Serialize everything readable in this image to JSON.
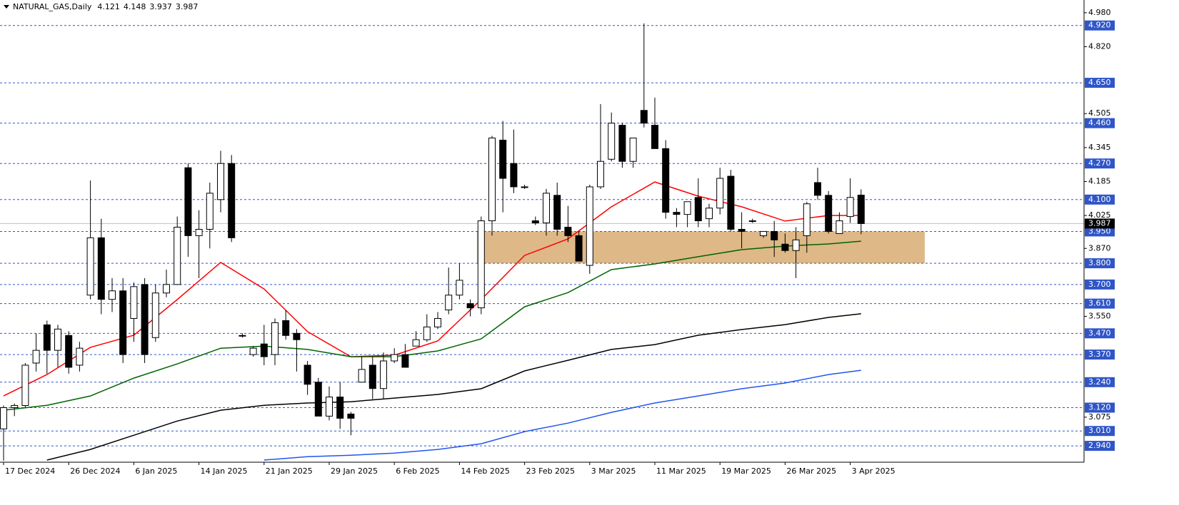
{
  "chart_data": {
    "type": "candlestick",
    "title": "NATURAL_GAS,Daily",
    "categories": [
      "17 Dec 2024",
      null,
      null,
      null,
      null,
      null,
      "26 Dec 2024",
      null,
      null,
      null,
      null,
      null,
      "6 Jan 2025",
      null,
      null,
      null,
      null,
      null,
      "14 Jan 2025",
      null,
      null,
      null,
      null,
      null,
      "21 Jan 2025",
      null,
      null,
      null,
      null,
      null,
      "29 Jan 2025",
      null,
      null,
      null,
      null,
      null,
      "6 Feb 2025",
      null,
      null,
      null,
      null,
      null,
      "14 Feb 2025",
      null,
      null,
      null,
      null,
      null,
      "23 Feb 2025",
      null,
      null,
      null,
      null,
      null,
      "3 Mar 2025",
      null,
      null,
      null,
      null,
      null,
      "11 Mar 2025",
      null,
      null,
      null,
      null,
      null,
      "19 Mar 2025",
      null,
      null,
      null,
      null,
      null,
      "26 Mar 2025",
      null,
      null,
      null,
      null,
      null,
      "3 Apr 2025",
      null
    ],
    "open": [
      3.02,
      3.12,
      3.13,
      3.33,
      3.51,
      3.39,
      3.46,
      3.32,
      3.65,
      3.92,
      3.63,
      3.67,
      3.54,
      3.7,
      3.45,
      3.66,
      3.7,
      4.25,
      3.93,
      3.96,
      4.1,
      4.27,
      3.46,
      3.37,
      3.42,
      3.37,
      3.53,
      3.47,
      3.32,
      3.24,
      3.08,
      3.17,
      3.09,
      3.24,
      3.32,
      3.21,
      3.34,
      3.37,
      3.41,
      3.44,
      3.5,
      3.58,
      3.65,
      3.61,
      3.59,
      4.0,
      4.38,
      4.27,
      4.16,
      4.0,
      3.99,
      4.12,
      3.97,
      3.93,
      3.79,
      4.16,
      4.29,
      4.45,
      4.28,
      4.52,
      4.45,
      4.34,
      4.04,
      4.03,
      4.11,
      4.01,
      4.06,
      4.21,
      3.96,
      4.0,
      3.93,
      3.95,
      3.89,
      3.86,
      3.93,
      4.18,
      4.12,
      3.94,
      4.02,
      4.121
    ],
    "high": [
      3.13,
      3.14,
      3.33,
      3.47,
      3.53,
      3.51,
      3.48,
      3.43,
      4.19,
      4.01,
      3.73,
      3.73,
      3.71,
      3.73,
      3.7,
      3.77,
      4.02,
      4.27,
      4.05,
      4.18,
      4.33,
      4.31,
      3.47,
      3.41,
      3.51,
      3.54,
      3.58,
      3.49,
      3.34,
      3.26,
      3.22,
      3.24,
      3.1,
      3.36,
      3.36,
      3.38,
      3.4,
      3.42,
      3.48,
      3.56,
      3.57,
      3.78,
      3.8,
      3.63,
      4.02,
      4.4,
      4.47,
      4.43,
      4.17,
      4.02,
      4.15,
      4.18,
      4.07,
      3.95,
      4.17,
      4.55,
      4.51,
      4.46,
      4.39,
      4.93,
      4.58,
      4.38,
      4.06,
      4.09,
      4.2,
      4.08,
      4.25,
      4.24,
      4.04,
      4.01,
      3.95,
      4.0,
      3.94,
      3.97,
      4.09,
      4.25,
      4.14,
      4.04,
      4.2,
      4.148
    ],
    "low": [
      2.87,
      3.08,
      3.12,
      3.29,
      3.28,
      3.31,
      3.28,
      3.29,
      3.63,
      3.56,
      3.57,
      3.33,
      3.43,
      3.33,
      3.43,
      3.64,
      3.7,
      3.83,
      3.73,
      3.87,
      4.04,
      3.9,
      3.45,
      3.36,
      3.32,
      3.32,
      3.44,
      3.29,
      3.18,
      3.08,
      3.06,
      3.02,
      2.99,
      3.24,
      3.16,
      3.16,
      3.33,
      3.31,
      3.41,
      3.43,
      3.49,
      3.56,
      3.63,
      3.55,
      3.56,
      3.93,
      4.04,
      4.13,
      4.15,
      3.98,
      3.93,
      3.93,
      3.9,
      3.81,
      3.75,
      4.15,
      4.28,
      4.25,
      4.25,
      4.44,
      4.34,
      4.01,
      3.97,
      3.97,
      3.97,
      3.97,
      4.03,
      3.95,
      3.87,
      3.99,
      3.92,
      3.83,
      3.85,
      3.73,
      3.85,
      4.1,
      3.94,
      3.94,
      3.99,
      3.937
    ],
    "close": [
      3.12,
      3.13,
      3.32,
      3.39,
      3.39,
      3.49,
      3.31,
      3.4,
      3.92,
      3.63,
      3.67,
      3.37,
      3.69,
      3.37,
      3.66,
      3.7,
      3.97,
      3.93,
      3.96,
      4.13,
      4.27,
      3.92,
      3.46,
      3.4,
      3.36,
      3.52,
      3.46,
      3.44,
      3.23,
      3.08,
      3.17,
      3.07,
      3.07,
      3.3,
      3.21,
      3.34,
      3.37,
      3.31,
      3.44,
      3.5,
      3.54,
      3.65,
      3.72,
      3.59,
      4.0,
      4.39,
      4.2,
      4.16,
      4.16,
      3.99,
      4.13,
      3.96,
      3.93,
      3.81,
      4.16,
      4.28,
      4.46,
      4.28,
      4.39,
      4.46,
      4.34,
      4.04,
      4.03,
      4.09,
      4.0,
      4.06,
      4.2,
      3.96,
      3.95,
      4.0,
      3.95,
      3.91,
      3.86,
      3.91,
      4.08,
      4.12,
      3.95,
      4.0,
      4.11,
      3.987
    ],
    "up_color": "#ffffff",
    "down_color": "#000000",
    "ylim": [
      2.863,
      5.04
    ],
    "yticks": [
      {
        "value": 4.98,
        "label": "4.980"
      },
      {
        "value": 4.82,
        "label": "4.820"
      },
      4.505,
      4.345,
      4.185,
      4.025,
      {
        "value": 3.87,
        "label": "3.870"
      },
      {
        "value": 3.55,
        "label": "3.550"
      },
      3.075
    ],
    "levels": [
      {
        "value": 4.92,
        "label": "4.920"
      },
      {
        "value": 4.65,
        "label": "4.650"
      },
      {
        "value": 4.46,
        "label": "4.460"
      },
      {
        "value": 4.27,
        "label": "4.270"
      },
      {
        "value": 4.1,
        "label": "4.100"
      },
      {
        "value": 3.95,
        "label": "3.950"
      },
      {
        "value": 3.8,
        "label": "3.800"
      },
      {
        "value": 3.7,
        "label": "3.700"
      },
      {
        "value": 3.61,
        "label": "3.610"
      },
      {
        "value": 3.47,
        "label": "3.470"
      },
      {
        "value": 3.37,
        "label": "3.370"
      },
      {
        "value": 3.24,
        "label": "3.240"
      },
      {
        "value": 3.12,
        "label": "3.120"
      },
      {
        "value": 3.01,
        "label": "3.010"
      },
      {
        "value": 2.94,
        "label": "2.940"
      }
    ],
    "level_color": "#2f55c8",
    "zone": {
      "ylim": [
        3.8,
        3.95
      ],
      "color": "#deb887"
    },
    "series": [
      {
        "color": "#ff0000",
        "x": [
          0,
          4,
          8,
          12,
          16,
          20,
          24,
          28,
          32,
          36,
          40,
          44,
          48,
          52,
          56,
          60,
          64,
          68,
          72,
          76,
          79
        ],
        "values": [
          3.175,
          3.276,
          3.404,
          3.461,
          3.629,
          3.804,
          3.679,
          3.478,
          3.36,
          3.367,
          3.434,
          3.629,
          3.837,
          3.915,
          4.066,
          4.183,
          4.116,
          4.066,
          3.999,
          4.025,
          4.025
        ]
      },
      {
        "color": "#006400",
        "x": [
          0,
          4,
          8,
          12,
          16,
          20,
          24,
          28,
          32,
          36,
          40,
          44,
          48,
          52,
          56,
          60,
          64,
          68,
          72,
          76,
          79
        ],
        "values": [
          3.108,
          3.131,
          3.175,
          3.259,
          3.326,
          3.4,
          3.41,
          3.394,
          3.36,
          3.36,
          3.387,
          3.444,
          3.595,
          3.662,
          3.77,
          3.797,
          3.831,
          3.864,
          3.881,
          3.891,
          3.904
        ]
      },
      {
        "color": "#000000",
        "x": [
          4,
          8,
          12,
          16,
          20,
          24,
          28,
          32,
          36,
          40,
          44,
          48,
          52,
          56,
          60,
          64,
          68,
          72,
          76,
          79
        ],
        "values": [
          2.873,
          2.923,
          2.99,
          3.057,
          3.108,
          3.131,
          3.142,
          3.148,
          3.165,
          3.182,
          3.209,
          3.293,
          3.343,
          3.394,
          3.417,
          3.461,
          3.488,
          3.511,
          3.545,
          3.562
        ]
      },
      {
        "color": "#2255ee",
        "x": [
          24,
          28,
          32,
          36,
          40,
          44,
          48,
          52,
          56,
          60,
          64,
          68,
          72,
          76,
          79
        ],
        "values": [
          2.873,
          2.889,
          2.896,
          2.906,
          2.923,
          2.95,
          3.007,
          3.047,
          3.098,
          3.142,
          3.175,
          3.209,
          3.236,
          3.276,
          3.296
        ]
      }
    ]
  }
}
